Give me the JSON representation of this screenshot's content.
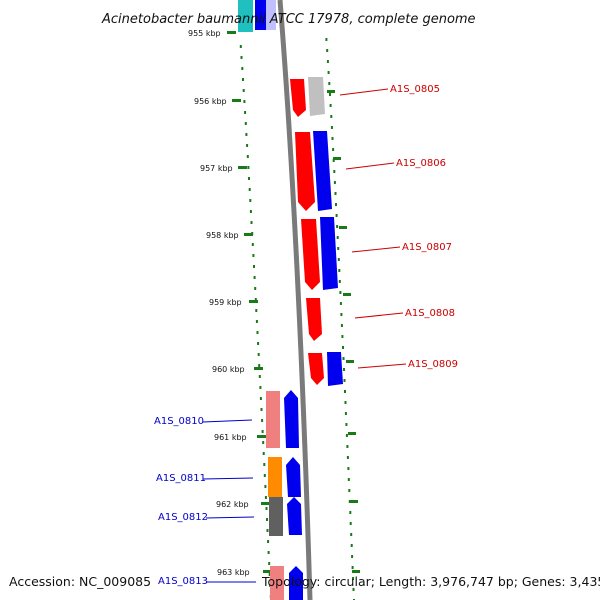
{
  "title": "Acinetobacter baumannii ATCC 17978, complete genome",
  "accession": "Accession: NC_009085",
  "topology": "Topology: circular; Length: 3,976,747 bp; Genes: 3,435",
  "kbp_ticks": [
    "955 kbp",
    "956 kbp",
    "957 kbp",
    "958 kbp",
    "959 kbp",
    "960 kbp",
    "961 kbp",
    "962 kbp",
    "963 kbp"
  ],
  "genes_right": [
    {
      "label": "A1S_0805",
      "color": "#cc0000"
    },
    {
      "label": "A1S_0806",
      "color": "#cc0000"
    },
    {
      "label": "A1S_0807",
      "color": "#cc0000"
    },
    {
      "label": "A1S_0808",
      "color": "#cc0000"
    },
    {
      "label": "A1S_0809",
      "color": "#cc0000"
    }
  ],
  "genes_left": [
    {
      "label": "A1S_0810",
      "color": "#0000cc"
    },
    {
      "label": "A1S_0811",
      "color": "#0000cc"
    },
    {
      "label": "A1S_0812",
      "color": "#0000cc"
    },
    {
      "label": "A1S_0813",
      "color": "#0000cc"
    }
  ],
  "colors": {
    "tick_green": "#1a7a1a",
    "backbone": "#7a7a7a",
    "red": "#ff0000",
    "blue": "#0000ee",
    "pink": "#f08080",
    "orange": "#ff8c00",
    "darkgray": "#606060",
    "lightgray": "#c0c0c0",
    "cyan": "#20c0c0"
  }
}
